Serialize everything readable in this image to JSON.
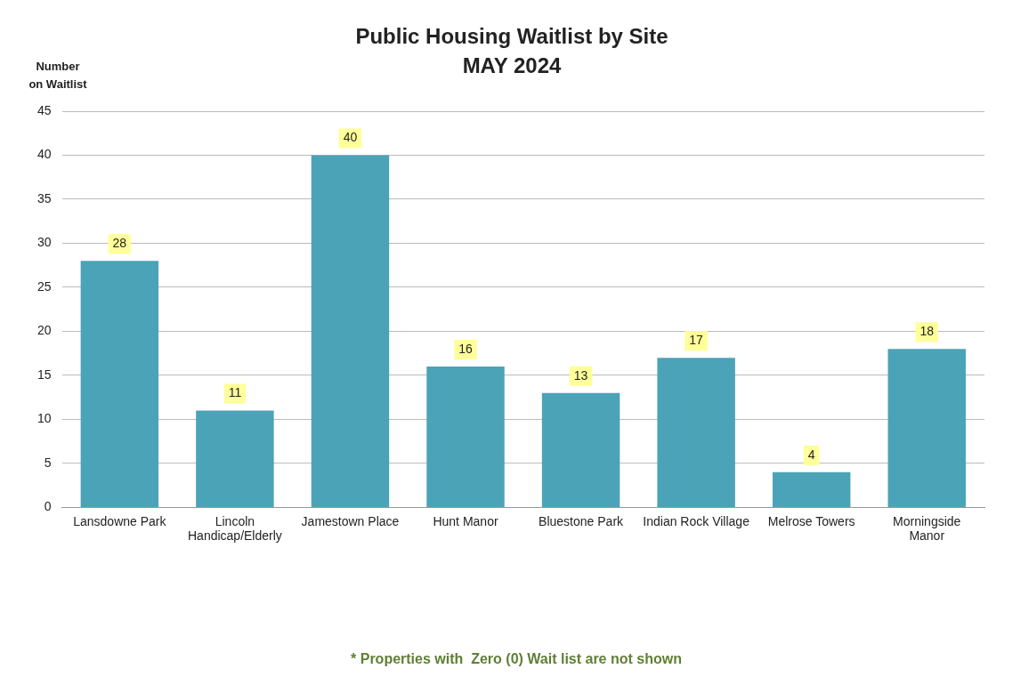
{
  "chart_data": {
    "type": "bar",
    "title": "Public Housing Waitlist by Site\nMAY 2024",
    "ylabel": "Number on Waitlist",
    "categories": [
      "Lansdowne Park",
      "Lincoln Handicap/Elderly",
      "Jamestown Place",
      "Hunt Manor",
      "Bluestone Park",
      "Indian Rock Village",
      "Melrose Towers",
      "Morningside Manor"
    ],
    "values": [
      28,
      11,
      40,
      16,
      13,
      17,
      4,
      18
    ],
    "color": "#4ba3b8",
    "ylim": [
      0,
      45
    ],
    "yticks": [
      0,
      5,
      10,
      15,
      20,
      25,
      30,
      35,
      40,
      45
    ],
    "grid": "y",
    "legend": false,
    "data_labels": true,
    "annotations": [
      "* Properties with  Zero (0) Wait list are not shown"
    ]
  }
}
